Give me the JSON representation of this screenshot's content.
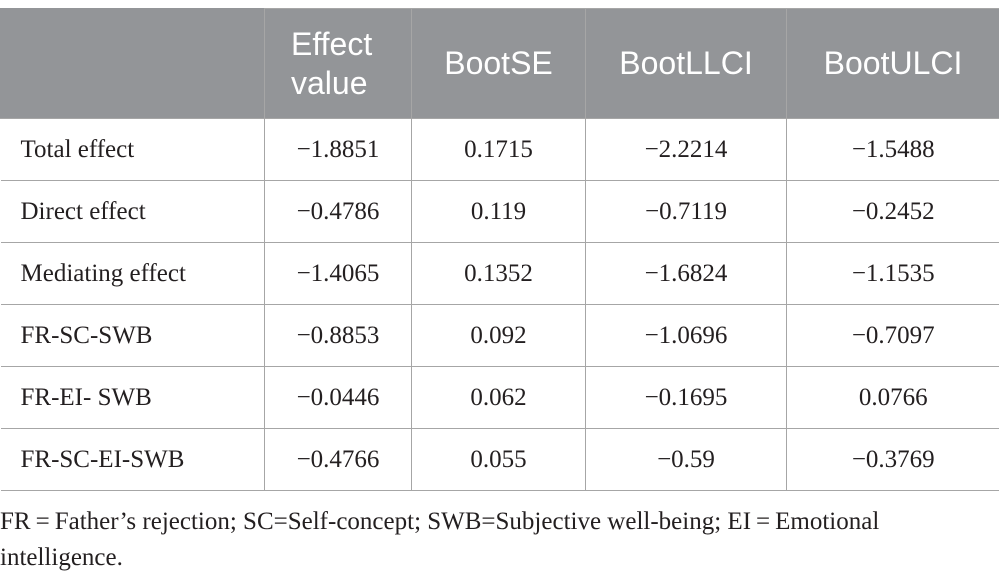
{
  "table": {
    "headers": [
      "",
      "Effect value",
      "BootSE",
      "BootLLCI",
      "BootULCI"
    ],
    "rows": [
      [
        "Total effect",
        "−1.8851",
        "0.1715",
        "−2.2214",
        "−1.5488"
      ],
      [
        "Direct effect",
        "−0.4786",
        "0.119",
        "−0.7119",
        "−0.2452"
      ],
      [
        "Mediating effect",
        "−1.4065",
        "0.1352",
        "−1.6824",
        "−1.1535"
      ],
      [
        "FR-SC-SWB",
        "−0.8853",
        "0.092",
        "−1.0696",
        "−0.7097"
      ],
      [
        "FR-EI- SWB",
        "−0.0446",
        "0.062",
        "−0.1695",
        "0.0766"
      ],
      [
        "FR-SC-EI-SWB",
        "−0.4766",
        "0.055",
        "−0.59",
        "−0.3769"
      ]
    ]
  },
  "footnote": "FR = Father’s rejection; SC=Self-concept; SWB=Subjective well-being; EI = Emotional intelligence."
}
